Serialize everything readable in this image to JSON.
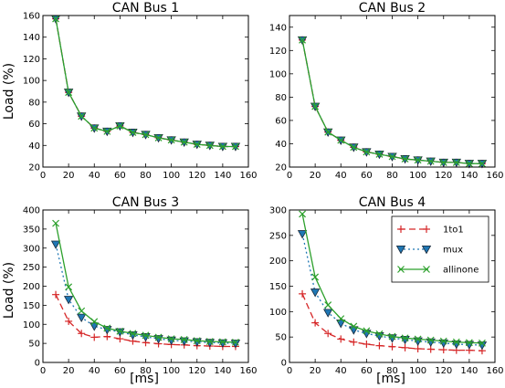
{
  "ylabel": "Load (%)",
  "xlabel": "[ms]",
  "series_styles": [
    {
      "name": "1to1",
      "color": "#d62728",
      "dash": "7,4",
      "marker": "plus"
    },
    {
      "name": "mux",
      "color": "#1f77b4",
      "dash": "2,3",
      "marker": "triangle-down",
      "marker_fill": "#1f77b4"
    },
    {
      "name": "allinone",
      "color": "#2ca02c",
      "dash": "",
      "marker": "x"
    }
  ],
  "legend": {
    "position": "upper-right",
    "panel": 3,
    "entries": [
      "1to1",
      "mux",
      "allinone"
    ]
  },
  "chart_data": [
    {
      "type": "line",
      "title": "CAN Bus 1",
      "xlim": [
        0,
        160
      ],
      "ylim": [
        20,
        160
      ],
      "xticks": [
        "0",
        "20",
        "40",
        "60",
        "80",
        "100",
        "120",
        "140",
        "160"
      ],
      "yticks": [
        "20",
        "40",
        "60",
        "80",
        "100",
        "120",
        "140",
        "160"
      ],
      "x": [
        10,
        20,
        30,
        40,
        50,
        60,
        70,
        80,
        90,
        100,
        110,
        120,
        130,
        140,
        150
      ],
      "series": [
        {
          "name": "1to1",
          "values": [
            157,
            89,
            67,
            56,
            53,
            58,
            52,
            50,
            47,
            45,
            43,
            41,
            40,
            39,
            39
          ]
        },
        {
          "name": "mux",
          "values": [
            157,
            89,
            67,
            56,
            53,
            58,
            52,
            50,
            47,
            45,
            43,
            41,
            40,
            39,
            39
          ]
        },
        {
          "name": "allinone",
          "values": [
            157,
            89,
            67,
            56,
            53,
            58,
            52,
            50,
            47,
            45,
            43,
            41,
            40,
            39,
            39
          ]
        }
      ]
    },
    {
      "type": "line",
      "title": "CAN Bus 2",
      "xlim": [
        0,
        160
      ],
      "ylim": [
        20,
        150
      ],
      "xticks": [
        "0",
        "20",
        "40",
        "60",
        "80",
        "100",
        "120",
        "140",
        "160"
      ],
      "yticks": [
        "20",
        "40",
        "60",
        "80",
        "100",
        "120",
        "140"
      ],
      "x": [
        10,
        20,
        30,
        40,
        50,
        60,
        70,
        80,
        90,
        100,
        110,
        120,
        130,
        140,
        150
      ],
      "series": [
        {
          "name": "1to1",
          "values": [
            129,
            72,
            50,
            43,
            37,
            33,
            31,
            29,
            27,
            26,
            25,
            24,
            24,
            23,
            23
          ]
        },
        {
          "name": "mux",
          "values": [
            129,
            72,
            50,
            43,
            37,
            33,
            31,
            29,
            27,
            26,
            25,
            24,
            24,
            23,
            23
          ]
        },
        {
          "name": "allinone",
          "values": [
            129,
            72,
            50,
            43,
            37,
            33,
            31,
            29,
            27,
            26,
            25,
            24,
            24,
            23,
            23
          ]
        }
      ]
    },
    {
      "type": "line",
      "title": "CAN Bus 3",
      "xlim": [
        0,
        160
      ],
      "ylim": [
        0,
        400
      ],
      "xticks": [
        "0",
        "20",
        "40",
        "60",
        "80",
        "100",
        "120",
        "140",
        "160"
      ],
      "yticks": [
        "0",
        "50",
        "100",
        "150",
        "200",
        "250",
        "300",
        "350",
        "400"
      ],
      "x": [
        10,
        20,
        30,
        40,
        50,
        60,
        70,
        80,
        90,
        100,
        110,
        120,
        130,
        140,
        150
      ],
      "series": [
        {
          "name": "1to1",
          "values": [
            178,
            108,
            76,
            66,
            68,
            62,
            56,
            52,
            49,
            47,
            46,
            44,
            43,
            42,
            42
          ]
        },
        {
          "name": "mux",
          "values": [
            310,
            165,
            118,
            95,
            86,
            80,
            72,
            67,
            62,
            58,
            56,
            54,
            52,
            51,
            50
          ]
        },
        {
          "name": "allinone",
          "values": [
            365,
            198,
            135,
            107,
            90,
            82,
            76,
            71,
            66,
            62,
            60,
            57,
            55,
            54,
            53
          ]
        }
      ]
    },
    {
      "type": "line",
      "title": "CAN Bus 4",
      "xlim": [
        0,
        160
      ],
      "ylim": [
        0,
        300
      ],
      "xticks": [
        "0",
        "20",
        "40",
        "60",
        "80",
        "100",
        "120",
        "140",
        "160"
      ],
      "yticks": [
        "0",
        "50",
        "100",
        "150",
        "200",
        "250",
        "300"
      ],
      "x": [
        10,
        20,
        30,
        40,
        50,
        60,
        70,
        80,
        90,
        100,
        110,
        120,
        130,
        140,
        150
      ],
      "series": [
        {
          "name": "1to1",
          "values": [
            135,
            78,
            57,
            46,
            40,
            36,
            33,
            31,
            29,
            27,
            26,
            25,
            24,
            24,
            23
          ]
        },
        {
          "name": "mux",
          "values": [
            253,
            138,
            98,
            77,
            64,
            57,
            52,
            48,
            45,
            42,
            40,
            38,
            36,
            35,
            34
          ]
        },
        {
          "name": "allinone",
          "values": [
            292,
            168,
            113,
            86,
            71,
            62,
            56,
            51,
            48,
            46,
            44,
            42,
            40,
            39,
            38
          ]
        }
      ]
    }
  ]
}
